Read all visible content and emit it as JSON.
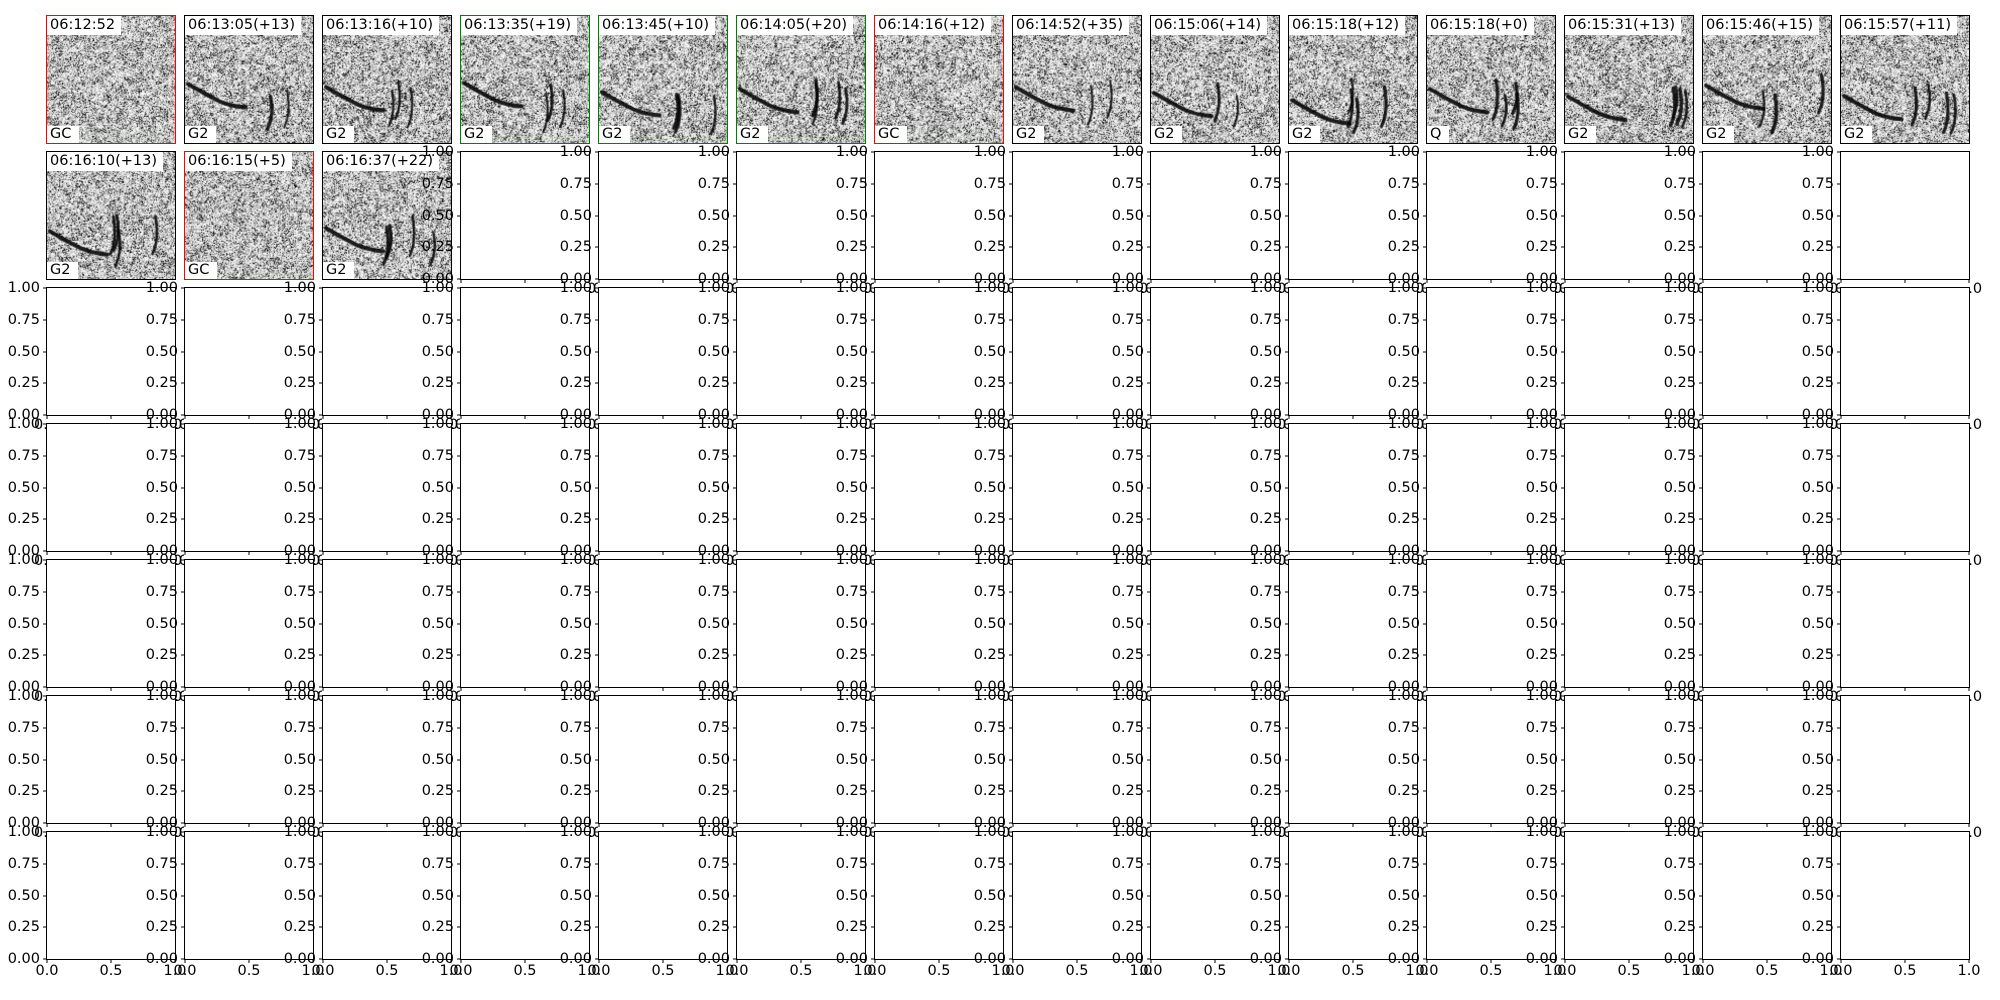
{
  "chart_data": {
    "type": "heatmap",
    "title": "",
    "description": "7x14 grid of matplotlib subplots; first 17 panels are spectrogram image crops with timestamp titles, category labels and colored border rectangles; remaining 81 panels are empty axes with default 0-1 limits",
    "grid": {
      "rows": 7,
      "cols": 14
    },
    "panels": [
      {
        "row": 0,
        "col": 0,
        "time": "06:12:52",
        "label": "GC",
        "border": "red"
      },
      {
        "row": 0,
        "col": 1,
        "time": "06:13:05(+13)",
        "label": "G2",
        "border": "black"
      },
      {
        "row": 0,
        "col": 2,
        "time": "06:13:16(+10)",
        "label": "G2",
        "border": "black"
      },
      {
        "row": 0,
        "col": 3,
        "time": "06:13:35(+19)",
        "label": "G2",
        "border": "green"
      },
      {
        "row": 0,
        "col": 4,
        "time": "06:13:45(+10)",
        "label": "G2",
        "border": "green"
      },
      {
        "row": 0,
        "col": 5,
        "time": "06:14:05(+20)",
        "label": "G2",
        "border": "green"
      },
      {
        "row": 0,
        "col": 6,
        "time": "06:14:16(+12)",
        "label": "GC",
        "border": "red"
      },
      {
        "row": 0,
        "col": 7,
        "time": "06:14:52(+35)",
        "label": "G2",
        "border": "black"
      },
      {
        "row": 0,
        "col": 8,
        "time": "06:15:06(+14)",
        "label": "G2",
        "border": "black"
      },
      {
        "row": 0,
        "col": 9,
        "time": "06:15:18(+12)",
        "label": "G2",
        "border": "black"
      },
      {
        "row": 0,
        "col": 10,
        "time": "06:15:18(+0)",
        "label": "Q",
        "border": "black"
      },
      {
        "row": 0,
        "col": 11,
        "time": "06:15:31(+13)",
        "label": "G2",
        "border": "black"
      },
      {
        "row": 0,
        "col": 12,
        "time": "06:15:46(+15)",
        "label": "G2",
        "border": "black"
      },
      {
        "row": 0,
        "col": 13,
        "time": "06:15:57(+11)",
        "label": "G2",
        "border": "black"
      },
      {
        "row": 1,
        "col": 0,
        "time": "06:16:10(+13)",
        "label": "G2",
        "border": "black"
      },
      {
        "row": 1,
        "col": 1,
        "time": "06:16:15(+5)",
        "label": "GC",
        "border": "red"
      },
      {
        "row": 1,
        "col": 2,
        "time": "06:16:37(+22)",
        "label": "G2",
        "border": "black"
      }
    ],
    "empty_axes": {
      "xlim": [
        0,
        1
      ],
      "ylim": [
        0,
        1
      ],
      "x_tick_labels": [
        "0.0",
        "0.5",
        "1.0"
      ],
      "y_tick_labels": [
        "1.00",
        "0.75",
        "0.50",
        "0.25",
        "0.00"
      ],
      "first_empty_row_starts_at_col": 4
    }
  },
  "colors": {
    "black": "#000000",
    "red": "#ff0000",
    "green": "#008000",
    "background": "#ffffff"
  }
}
